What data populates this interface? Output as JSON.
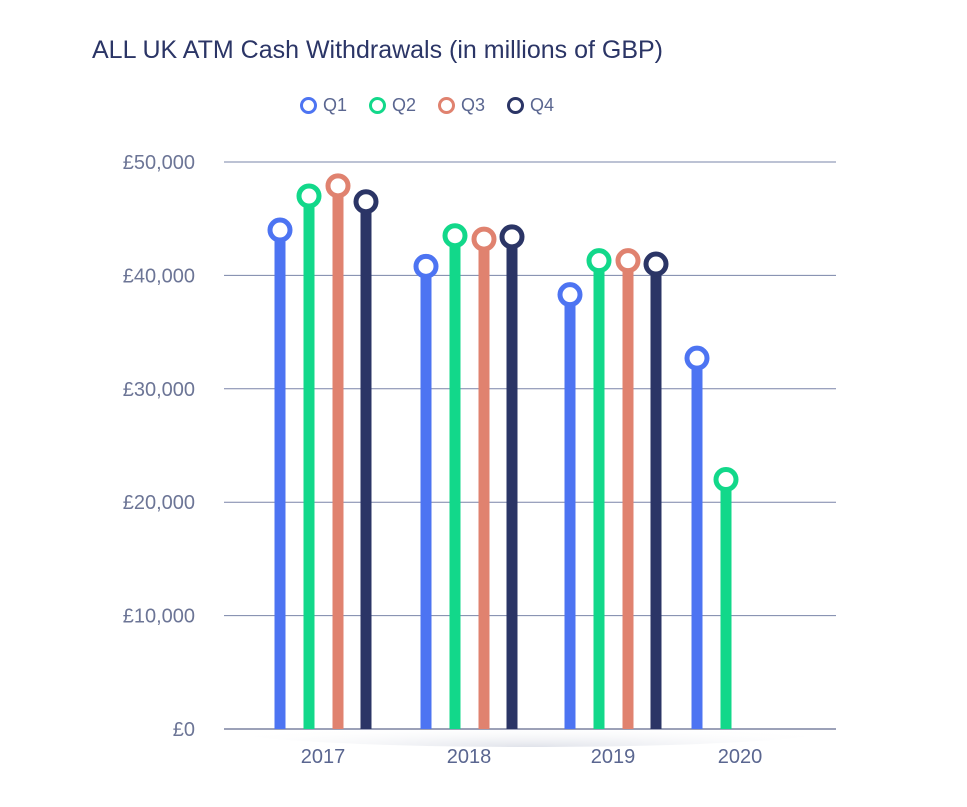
{
  "chart_data": {
    "type": "lollipop",
    "title": "ALL UK ATM Cash Withdrawals (in millions of GBP)",
    "xlabel": "",
    "ylabel": "",
    "categories": [
      "2017",
      "2018",
      "2019",
      "2020"
    ],
    "ylim": [
      0,
      50000
    ],
    "yticks": [
      0,
      10000,
      20000,
      30000,
      40000,
      50000
    ],
    "ytick_labels": [
      "£0",
      "£10,000",
      "£20,000",
      "£30,000",
      "£40,000",
      "£50,000"
    ],
    "grid": true,
    "legend_position": "top-center",
    "series": [
      {
        "name": "Q1",
        "color": "#4d74f2",
        "values": [
          44000,
          40800,
          38300,
          32700
        ]
      },
      {
        "name": "Q2",
        "color": "#12d88a",
        "values": [
          47000,
          43500,
          41300,
          22000
        ]
      },
      {
        "name": "Q3",
        "color": "#e0826f",
        "values": [
          47900,
          43200,
          41300,
          null
        ]
      },
      {
        "name": "Q4",
        "color": "#2b3566",
        "values": [
          46500,
          43400,
          41000,
          null
        ]
      }
    ]
  }
}
